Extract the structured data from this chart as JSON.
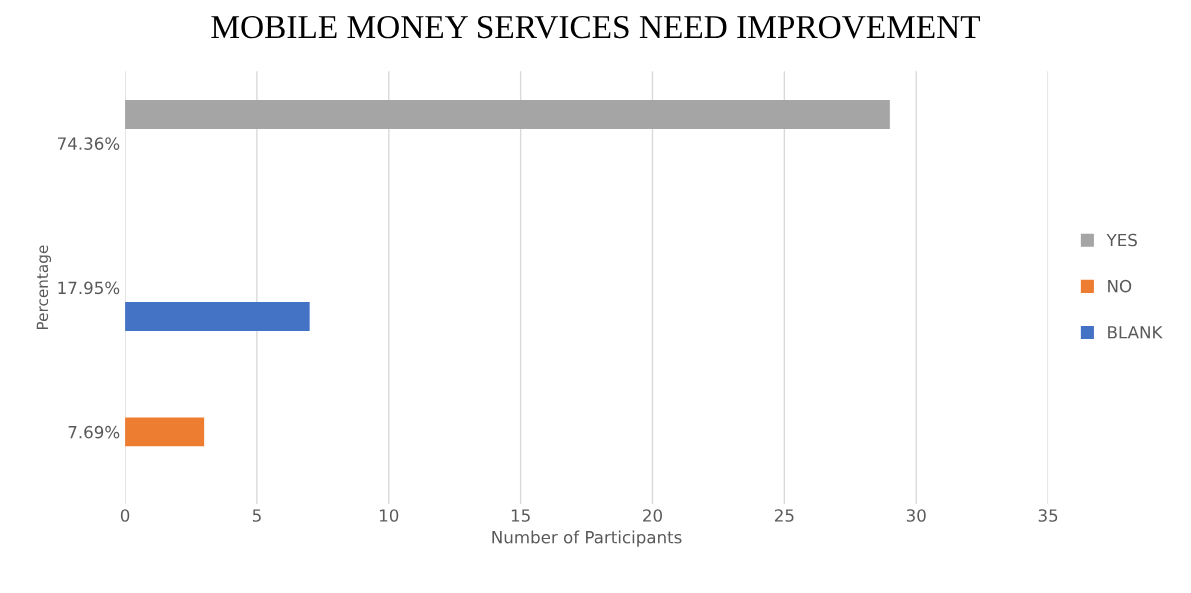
{
  "chart_data": {
    "type": "bar",
    "orientation": "horizontal",
    "title": "MOBILE MONEY SERVICES NEED IMPROVEMENT",
    "xlabel": "Number of Participants",
    "ylabel": "Percentage",
    "categories": [
      "74.36%",
      "17.95%",
      "7.69%"
    ],
    "series": [
      {
        "name": "YES",
        "color": "#a5a5a5",
        "values": [
          29,
          null,
          null
        ]
      },
      {
        "name": "NO",
        "color": "#ed7d31",
        "values": [
          null,
          null,
          3
        ]
      },
      {
        "name": "BLANK",
        "color": "#4472c4",
        "values": [
          null,
          7,
          null
        ]
      }
    ],
    "xlim": [
      0,
      35
    ],
    "xticks": [
      0,
      5,
      10,
      15,
      20,
      25,
      30,
      35
    ],
    "grid": "x",
    "legend": "right"
  }
}
